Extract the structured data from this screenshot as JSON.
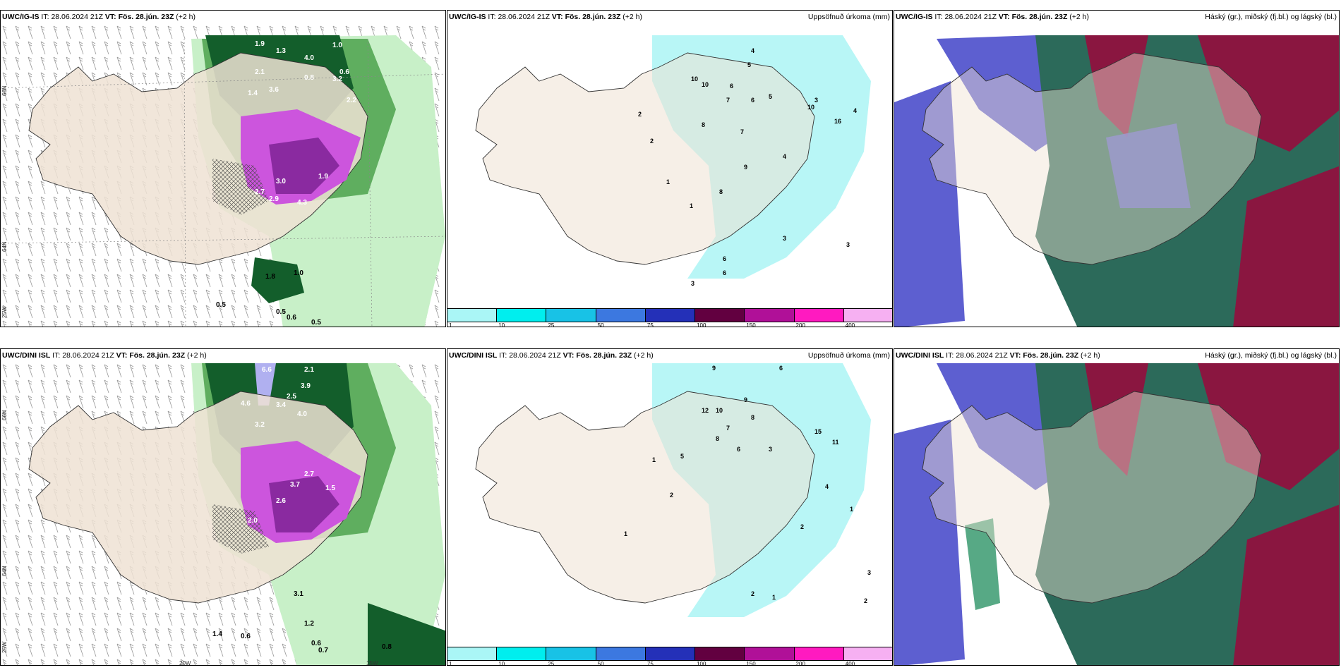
{
  "colors": {
    "land": "#efe2d3",
    "coast": "#333333",
    "precip_light": "#c8f0c8",
    "precip_mid": "#5fae5f",
    "precip_dark": "#135e2b",
    "snow_purple": "#cc55dd",
    "accum_cyan": "#b8f6f6",
    "cloud_blue": "#5d5fd0",
    "cloud_red": "#8a1640",
    "cloud_green": "#2c6a5a"
  },
  "colorbar": {
    "colors": [
      "#aaf6f6",
      "#00eeee",
      "#18c2e6",
      "#3c78e0",
      "#2430b8",
      "#620040",
      "#b01098",
      "#ff1ac0",
      "#f6b0f2"
    ],
    "labels": [
      "1",
      "10",
      "25",
      "50",
      "75",
      "100",
      "150",
      "200",
      "400"
    ]
  },
  "panels": {
    "p1": {
      "model": "UWC/IG-IS",
      "it_label": "IT:",
      "it": "28.06.2024 21Z",
      "vt_label": "VT:",
      "vt": "Fös. 28.jún. 23Z",
      "lead": "(+2 h)",
      "right": ""
    },
    "p2": {
      "model": "UWC/IG-IS",
      "it_label": "IT:",
      "it": "28.06.2024 21Z",
      "vt_label": "VT:",
      "vt": "Fös. 28.jún. 23Z",
      "lead": "(+2 h)",
      "right": "Uppsöfnuð úrkoma (mm)"
    },
    "p3": {
      "model": "UWC/IG-IS",
      "it_label": "IT:",
      "it": "28.06.2024 21Z",
      "vt_label": "VT:",
      "vt": "Fös. 28.jún. 23Z",
      "lead": "(+2 h)",
      "right": "Háský (gr.), miðský (fj.bl.) og lágský (bl.)"
    },
    "p4": {
      "model": "UWC/DINI ISL",
      "it_label": "IT:",
      "it": "28.06.2024 21Z",
      "vt_label": "VT:",
      "vt": "Fös. 28.jún. 23Z",
      "lead": "(+2 h)",
      "right": ""
    },
    "p5": {
      "model": "UWC/DINI ISL",
      "it_label": "IT:",
      "it": "28.06.2024 21Z",
      "vt_label": "VT:",
      "vt": "Fös. 28.jún. 23Z",
      "lead": "(+2 h)",
      "right": "Uppsöfnuð úrkoma (mm)"
    },
    "p6": {
      "model": "UWC/DINI ISL",
      "it_label": "IT:",
      "it": "28.06.2024 21Z",
      "vt_label": "VT:",
      "vt": "Fös. 28.jún. 23Z",
      "lead": "(+2 h)",
      "right": "Háský (gr.), miðský (fj.bl.) og lágský (bl.)"
    }
  },
  "axis": {
    "lat66": "66N",
    "lat64": "64N",
    "lon20": "20W",
    "lon15": "15W",
    "lon25": "25W"
  },
  "values": {
    "p1": [
      "1.9",
      "1.3",
      "1.0",
      "0.6",
      "3.2",
      "2.1",
      "4.0",
      "1.4",
      "3.6",
      "0.8",
      "2.2",
      "3.0",
      "1.9",
      "4.3",
      "2.9",
      "2.7",
      "0.5",
      "0.5",
      "0.6",
      "0.5",
      "1.0",
      "1.8"
    ],
    "p2": [
      "4",
      "5",
      "10",
      "10",
      "6",
      "7",
      "6",
      "5",
      "8",
      "7",
      "9",
      "4",
      "2",
      "2",
      "1",
      "3",
      "10",
      "16",
      "4",
      "6",
      "8",
      "3",
      "3",
      "1",
      "6",
      "3"
    ],
    "p4": [
      "6.6",
      "2.1",
      "3.9",
      "2.5",
      "4.6",
      "3.4",
      "4.0",
      "3.2",
      "2.7",
      "3.7",
      "2.0",
      "2.6",
      "1.5",
      "0.6",
      "0.6",
      "1.2",
      "0.8",
      "0.7",
      "1.4",
      "3.1"
    ],
    "p5": [
      "9",
      "6",
      "12",
      "10",
      "7",
      "9",
      "8",
      "8",
      "6",
      "15",
      "11",
      "3",
      "5",
      "1",
      "2",
      "1",
      "4",
      "2",
      "1",
      "3",
      "2",
      "1",
      "2"
    ]
  }
}
